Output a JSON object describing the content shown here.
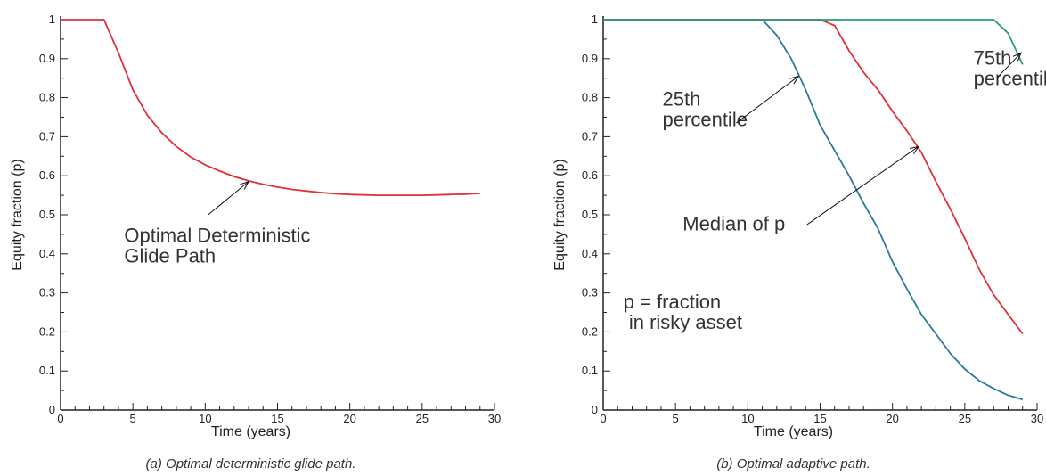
{
  "chart_data": [
    {
      "type": "line",
      "xlabel": "Time (years)",
      "ylabel": "Equity fraction (p)",
      "xlim": [
        0,
        30
      ],
      "ylim": [
        0,
        1
      ],
      "xticks": [
        0,
        5,
        10,
        15,
        20,
        25,
        30
      ],
      "yticks": [
        0,
        0.1,
        0.2,
        0.3,
        0.4,
        0.5,
        0.6,
        0.7,
        0.8,
        0.9,
        1
      ],
      "grid": false,
      "caption": "(a) Optimal deterministic glide path.",
      "series": [
        {
          "color": "#e0303a",
          "x": [
            0,
            1,
            2,
            3,
            4,
            5,
            6,
            7,
            8,
            9,
            10,
            11,
            12,
            13,
            14,
            15,
            16,
            17,
            18,
            19,
            20,
            21,
            22,
            23,
            24,
            25,
            26,
            27,
            28,
            29
          ],
          "y": [
            1.0,
            1.0,
            1.0,
            1.0,
            0.915,
            0.82,
            0.755,
            0.71,
            0.675,
            0.648,
            0.628,
            0.612,
            0.598,
            0.587,
            0.578,
            0.571,
            0.565,
            0.561,
            0.557,
            0.554,
            0.552,
            0.551,
            0.55,
            0.55,
            0.55,
            0.55,
            0.551,
            0.552,
            0.553,
            0.555
          ]
        }
      ],
      "annotations": [
        {
          "lines": [
            "Optimal Deterministic",
            "Glide Path"
          ],
          "text_x": 4.4,
          "text_y": 0.43,
          "arrow_from": [
            10.2,
            0.5
          ],
          "arrow_to": [
            13.0,
            0.585
          ]
        }
      ]
    },
    {
      "type": "line",
      "xlabel": "Time (years)",
      "ylabel": "Equity fraction (p)",
      "xlim": [
        0,
        30
      ],
      "ylim": [
        0,
        1
      ],
      "xticks": [
        0,
        5,
        10,
        15,
        20,
        25,
        30
      ],
      "yticks": [
        0,
        0.1,
        0.2,
        0.3,
        0.4,
        0.5,
        0.6,
        0.7,
        0.8,
        0.9,
        1
      ],
      "grid": false,
      "caption": "(b) Optimal adaptive path.",
      "series": [
        {
          "color": "#2a7a9c",
          "x": [
            0,
            1,
            2,
            3,
            4,
            5,
            6,
            7,
            8,
            9,
            10,
            11,
            12,
            13,
            14,
            15,
            16,
            17,
            18,
            19,
            20,
            21,
            22,
            23,
            24,
            25,
            26,
            27,
            28,
            29
          ],
          "y": [
            1,
            1,
            1,
            1,
            1,
            1,
            1,
            1,
            1,
            1,
            1,
            1,
            0.96,
            0.9,
            0.82,
            0.73,
            0.665,
            0.6,
            0.53,
            0.465,
            0.38,
            0.31,
            0.245,
            0.195,
            0.145,
            0.105,
            0.075,
            0.055,
            0.038,
            0.027
          ]
        },
        {
          "color": "#e0303a",
          "x": [
            0,
            1,
            2,
            3,
            4,
            5,
            6,
            7,
            8,
            9,
            10,
            11,
            12,
            13,
            14,
            15,
            16,
            17,
            18,
            19,
            20,
            21,
            22,
            23,
            24,
            25,
            26,
            27,
            28,
            29
          ],
          "y": [
            1,
            1,
            1,
            1,
            1,
            1,
            1,
            1,
            1,
            1,
            1,
            1,
            1,
            1,
            1,
            1,
            0.985,
            0.92,
            0.865,
            0.82,
            0.765,
            0.715,
            0.66,
            0.585,
            0.515,
            0.44,
            0.36,
            0.295,
            0.245,
            0.195
          ]
        },
        {
          "color": "#2a9a7a",
          "x": [
            0,
            1,
            2,
            3,
            4,
            5,
            6,
            7,
            8,
            9,
            10,
            11,
            12,
            13,
            14,
            15,
            16,
            17,
            18,
            19,
            20,
            21,
            22,
            23,
            24,
            25,
            26,
            27,
            28,
            29
          ],
          "y": [
            1,
            1,
            1,
            1,
            1,
            1,
            1,
            1,
            1,
            1,
            1,
            1,
            1,
            1,
            1,
            1,
            1,
            1,
            1,
            1,
            1,
            1,
            1,
            1,
            1,
            1,
            1,
            1,
            0.965,
            0.885
          ]
        }
      ],
      "annotations": [
        {
          "lines": [
            "25th",
            "percentile"
          ],
          "text_x": 4.1,
          "text_y": 0.78,
          "arrow_from": [
            9.2,
            0.735
          ],
          "arrow_to": [
            13.5,
            0.855
          ]
        },
        {
          "lines": [
            "Median of p"
          ],
          "text_x": 5.5,
          "text_y": 0.46,
          "arrow_from": [
            14.1,
            0.475
          ],
          "arrow_to": [
            21.8,
            0.675
          ]
        },
        {
          "lines": [
            "75th",
            "percentile"
          ],
          "text_x": 25.6,
          "text_y": 0.885,
          "arrow_from": [
            27.2,
            0.85
          ],
          "arrow_to": [
            28.9,
            0.915
          ]
        },
        {
          "lines": [
            "p = fraction",
            "   in risky asset"
          ],
          "text_x": 1.4,
          "text_y": 0.26
        }
      ]
    }
  ]
}
